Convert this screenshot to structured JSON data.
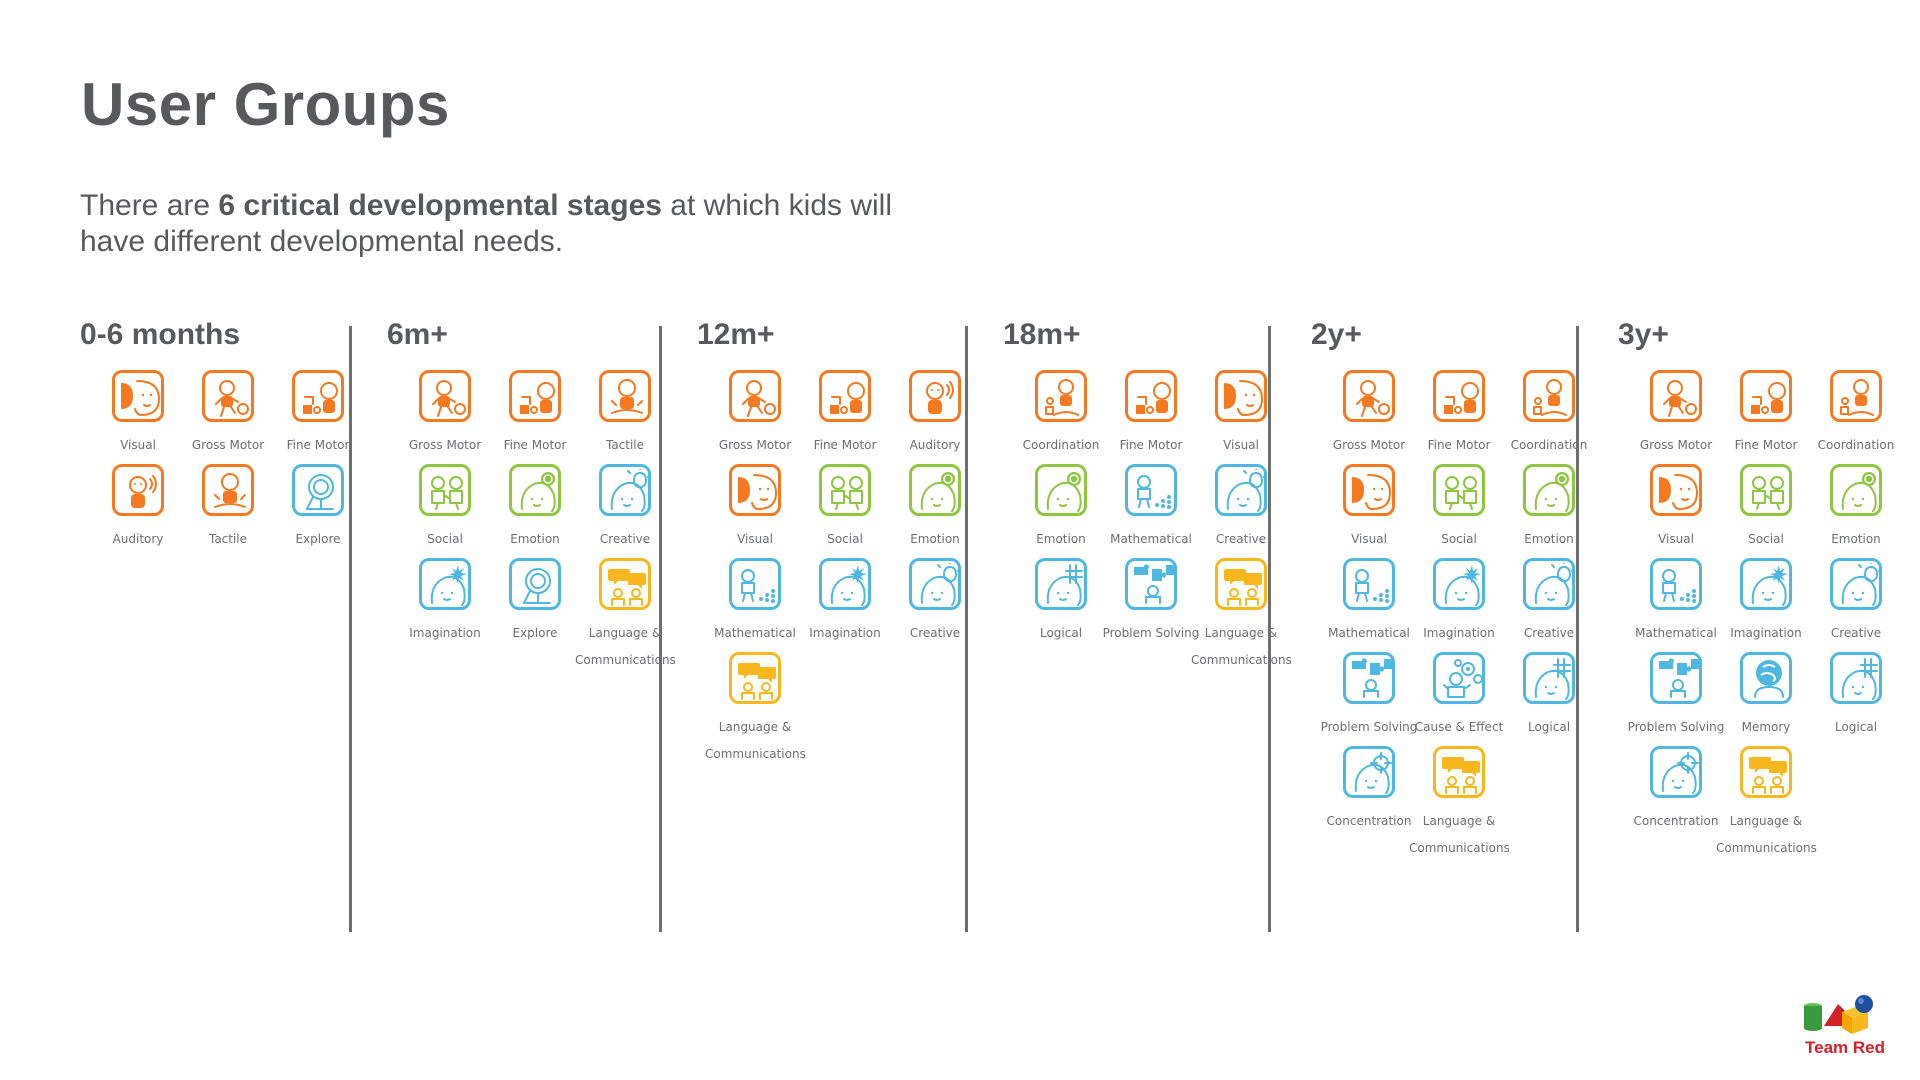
{
  "title": "User Groups",
  "intro": {
    "part1": "There are ",
    "bold": "6 critical developmental stages",
    "part2": " at which kids will have different developmental needs."
  },
  "colors": {
    "motor": "#f47920",
    "emotional": "#8dc63f",
    "cognitive": "#4fb8e0",
    "language": "#f7b71d",
    "logo_red": "#d42027"
  },
  "stages": [
    {
      "label": "0-6 months",
      "skills": [
        {
          "label": "Visual",
          "icon": "sun-face-icon",
          "color": "motor"
        },
        {
          "label": "Gross Motor",
          "icon": "kicking-child-icon",
          "color": "motor"
        },
        {
          "label": "Fine Motor",
          "icon": "child-hands-icon",
          "color": "motor"
        },
        {
          "label": "Auditory",
          "icon": "sound-waves-icon",
          "color": "motor"
        },
        {
          "label": "Tactile",
          "icon": "sitting-child-icon",
          "color": "motor"
        },
        {
          "label": "Explore",
          "icon": "magnifier-icon",
          "color": "cognitive"
        }
      ]
    },
    {
      "label": "6m+",
      "skills": [
        {
          "label": "Gross Motor",
          "icon": "kicking-child-icon",
          "color": "motor"
        },
        {
          "label": "Fine Motor",
          "icon": "child-hands-icon",
          "color": "motor"
        },
        {
          "label": "Tactile",
          "icon": "sitting-child-icon",
          "color": "motor"
        },
        {
          "label": "Social",
          "icon": "two-children-icon",
          "color": "emotional"
        },
        {
          "label": "Emotion",
          "icon": "smiley-bubble-icon",
          "color": "emotional"
        },
        {
          "label": "Creative",
          "icon": "lightbulb-icon",
          "color": "cognitive"
        },
        {
          "label": "Imagination",
          "icon": "star-burst-icon",
          "color": "cognitive"
        },
        {
          "label": "Explore",
          "icon": "magnifier-icon",
          "color": "cognitive"
        },
        {
          "label": "Language & Communications",
          "icon": "speech-bubbles-icon",
          "color": "language"
        }
      ]
    },
    {
      "label": "12m+",
      "skills": [
        {
          "label": "Gross Motor",
          "icon": "kicking-child-icon",
          "color": "motor"
        },
        {
          "label": "Fine Motor",
          "icon": "child-hands-icon",
          "color": "motor"
        },
        {
          "label": "Auditory",
          "icon": "sound-waves-icon",
          "color": "motor"
        },
        {
          "label": "Visual",
          "icon": "sun-face-icon",
          "color": "motor"
        },
        {
          "label": "Social",
          "icon": "two-children-icon",
          "color": "emotional"
        },
        {
          "label": "Emotion",
          "icon": "smiley-bubble-icon",
          "color": "emotional"
        },
        {
          "label": "Mathematical",
          "icon": "abacus-icon",
          "color": "cognitive"
        },
        {
          "label": "Imagination",
          "icon": "star-burst-icon",
          "color": "cognitive"
        },
        {
          "label": "Creative",
          "icon": "lightbulb-icon",
          "color": "cognitive"
        },
        {
          "label": "Language & Communications",
          "icon": "speech-bubbles-icon",
          "color": "language"
        }
      ]
    },
    {
      "label": "18m+",
      "skills": [
        {
          "label": "Coordination",
          "icon": "blocks-child-icon",
          "color": "motor"
        },
        {
          "label": "Fine Motor",
          "icon": "child-hands-icon",
          "color": "motor"
        },
        {
          "label": "Visual",
          "icon": "sun-face-icon",
          "color": "motor"
        },
        {
          "label": "Emotion",
          "icon": "smiley-bubble-icon",
          "color": "emotional"
        },
        {
          "label": "Mathematical",
          "icon": "abacus-icon",
          "color": "cognitive"
        },
        {
          "label": "Creative",
          "icon": "lightbulb-icon",
          "color": "cognitive"
        },
        {
          "label": "Logical",
          "icon": "tic-tac-toe-icon",
          "color": "cognitive"
        },
        {
          "label": "Problem Solving",
          "icon": "puzzle-icon",
          "color": "cognitive"
        },
        {
          "label": "Language & Communications",
          "icon": "speech-bubbles-icon",
          "color": "language"
        }
      ]
    },
    {
      "label": "2y+",
      "skills": [
        {
          "label": "Gross Motor",
          "icon": "kicking-child-icon",
          "color": "motor"
        },
        {
          "label": "Fine Motor",
          "icon": "child-hands-icon",
          "color": "motor"
        },
        {
          "label": "Coordination",
          "icon": "blocks-child-icon",
          "color": "motor"
        },
        {
          "label": "Visual",
          "icon": "sun-face-icon",
          "color": "motor"
        },
        {
          "label": "Social",
          "icon": "two-children-icon",
          "color": "emotional"
        },
        {
          "label": "Emotion",
          "icon": "smiley-bubble-icon",
          "color": "emotional"
        },
        {
          "label": "Mathematical",
          "icon": "abacus-icon",
          "color": "cognitive"
        },
        {
          "label": "Imagination",
          "icon": "star-burst-icon",
          "color": "cognitive"
        },
        {
          "label": "Creative",
          "icon": "lightbulb-icon",
          "color": "cognitive"
        },
        {
          "label": "Problem Solving",
          "icon": "puzzle-icon",
          "color": "cognitive"
        },
        {
          "label": "Cause & Effect",
          "icon": "gears-icon",
          "color": "cognitive"
        },
        {
          "label": "Logical",
          "icon": "tic-tac-toe-icon",
          "color": "cognitive"
        },
        {
          "label": "Concentration",
          "icon": "crosshair-icon",
          "color": "cognitive"
        },
        {
          "label": "Language & Communications",
          "icon": "speech-bubbles-icon",
          "color": "language"
        }
      ]
    },
    {
      "label": "3y+",
      "skills": [
        {
          "label": "Gross Motor",
          "icon": "kicking-child-icon",
          "color": "motor"
        },
        {
          "label": "Fine Motor",
          "icon": "child-hands-icon",
          "color": "motor"
        },
        {
          "label": "Coordination",
          "icon": "blocks-child-icon",
          "color": "motor"
        },
        {
          "label": "Visual",
          "icon": "sun-face-icon",
          "color": "motor"
        },
        {
          "label": "Social",
          "icon": "two-children-icon",
          "color": "emotional"
        },
        {
          "label": "Emotion",
          "icon": "smiley-bubble-icon",
          "color": "emotional"
        },
        {
          "label": "Mathematical",
          "icon": "abacus-icon",
          "color": "cognitive"
        },
        {
          "label": "Imagination",
          "icon": "star-burst-icon",
          "color": "cognitive"
        },
        {
          "label": "Creative",
          "icon": "lightbulb-icon",
          "color": "cognitive"
        },
        {
          "label": "Problem Solving",
          "icon": "puzzle-icon",
          "color": "cognitive"
        },
        {
          "label": "Memory",
          "icon": "brain-icon",
          "color": "cognitive"
        },
        {
          "label": "Logical",
          "icon": "tic-tac-toe-icon",
          "color": "cognitive"
        },
        {
          "label": "Concentration",
          "icon": "crosshair-icon",
          "color": "cognitive"
        },
        {
          "label": "Language & Communications",
          "icon": "speech-bubbles-icon",
          "color": "language"
        }
      ]
    }
  ],
  "logo": {
    "text": "Team Red",
    "icon": "blocks-logo-icon"
  }
}
